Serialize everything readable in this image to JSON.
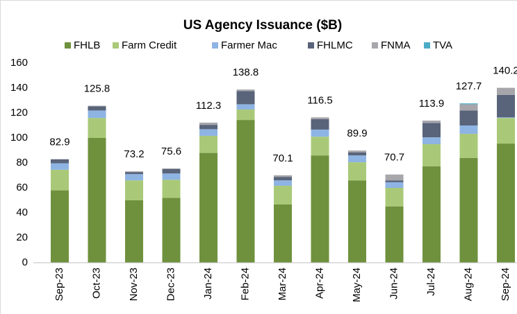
{
  "chart_data": {
    "type": "bar",
    "stacked": true,
    "title": "US Agency Issuance ($B)",
    "categories": [
      "Sep-23",
      "Oct-23",
      "Nov-23",
      "Dec-23",
      "Jan-24",
      "Feb-24",
      "Mar-24",
      "Apr-24",
      "May-24",
      "Jun-24",
      "Jul-24",
      "Aug-24",
      "Sep-24"
    ],
    "series": [
      {
        "name": "FHLB",
        "color": "#6f913d",
        "values": [
          58,
          100,
          50,
          52,
          88,
          114.4,
          46.7,
          86,
          66,
          45,
          77.2,
          84,
          95.5
        ]
      },
      {
        "name": "Farm Credit",
        "color": "#a9c978",
        "values": [
          16.5,
          16,
          16,
          14.5,
          13.7,
          8.4,
          15,
          15,
          14.5,
          15,
          17.8,
          19.3,
          20.5
        ]
      },
      {
        "name": "Farmer Mac",
        "color": "#8eb4e3",
        "values": [
          5.2,
          6,
          5,
          5,
          5.3,
          4.2,
          4.3,
          5.7,
          5.5,
          4.5,
          5.5,
          6.7,
          0.5
        ]
      },
      {
        "name": "FHLMC",
        "color": "#59647a",
        "values": [
          3.2,
          3.3,
          1.7,
          3.5,
          3.5,
          10.6,
          2.8,
          8.3,
          2.5,
          1.5,
          11.5,
          12,
          18
        ]
      },
      {
        "name": "FNMA",
        "color": "#a6a6ab",
        "values": [
          0,
          0.5,
          0.5,
          0.6,
          1.8,
          1.2,
          1.3,
          1.5,
          1.4,
          4.7,
          1.9,
          5,
          5.7
        ]
      },
      {
        "name": "TVA",
        "color": "#4bacc6",
        "values": [
          0,
          0,
          0,
          0,
          0,
          0,
          0,
          0,
          0,
          0,
          0,
          0.7,
          0
        ]
      }
    ],
    "totals": [
      82.9,
      125.8,
      73.2,
      75.6,
      112.3,
      138.8,
      70.1,
      116.5,
      89.9,
      70.7,
      113.9,
      127.7,
      140.2
    ],
    "ylim": [
      0,
      160
    ],
    "yticks": [
      0,
      20,
      40,
      60,
      80,
      100,
      120,
      140,
      160
    ],
    "legend": "top"
  }
}
